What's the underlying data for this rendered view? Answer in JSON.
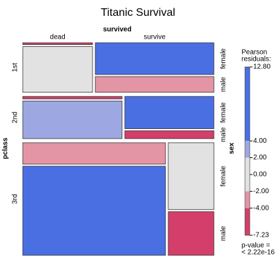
{
  "chart_data": {
    "type": "mosaic",
    "title": "Titanic Survival",
    "row_axis_label": "pclass",
    "col_axis_label": "survived",
    "sub_axis_label": "sex",
    "pclass": [
      "1st",
      "2nd",
      "3rd"
    ],
    "survived": [
      "dead",
      "survive"
    ],
    "sex": [
      "female",
      "male"
    ],
    "counts": [
      [
        [
          3,
          77
        ],
        [
          91,
          45
        ]
      ],
      [
        [
          6,
          91
        ],
        [
          70,
          17
        ]
      ],
      [
        [
          72,
          300
        ],
        [
          72,
          47
        ]
      ]
    ],
    "colors": [
      [
        [
          "#d33f6a",
          "#e2e2e2"
        ],
        [
          "#4a6fe3",
          "#e495a5"
        ]
      ],
      [
        [
          "#d33f6a",
          "#9da8e2"
        ],
        [
          "#4a6fe3",
          "#d33f6a"
        ]
      ],
      [
        [
          "#e495a5",
          "#4a6fe3"
        ],
        [
          "#e2e2e2",
          "#d33f6a"
        ]
      ]
    ],
    "legend": {
      "title_lines": [
        "Pearson",
        "residuals:"
      ],
      "lim": [
        -7.23,
        12.8
      ],
      "ticks": [
        {
          "value": 12.8,
          "label": "12.80"
        },
        {
          "value": 4,
          "label": "4.00"
        },
        {
          "value": 2,
          "label": "2.00"
        },
        {
          "value": 0,
          "label": "0.00"
        },
        {
          "value": -2,
          "label": "-2.00"
        },
        {
          "value": -4,
          "label": "-4.00"
        },
        -7.23
      ],
      "band_colors": [
        "#4a6fe3",
        "#9da8e2",
        "#e2e2e2",
        "#e2e2e2",
        "#e495a5",
        "#d33f6a"
      ],
      "pvalue_lines": [
        "p-value =",
        "< 2.22e-16"
      ]
    }
  }
}
